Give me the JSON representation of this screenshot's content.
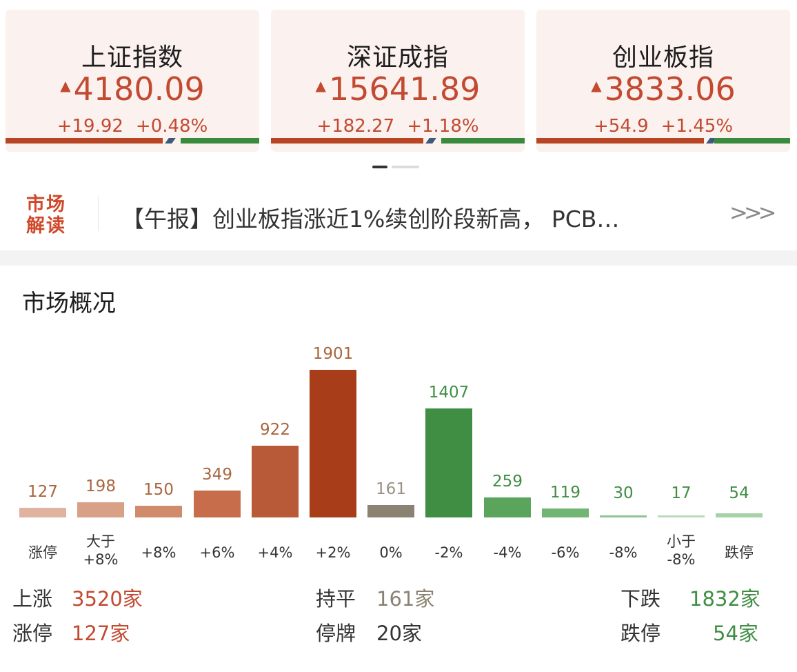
{
  "colors": {
    "up": "#c24a31",
    "down": "#3f8e43",
    "flat": "#8b8272",
    "card_bg": "#fbf1ee",
    "tag": "#d0482a"
  },
  "indices": [
    {
      "name": "上证指数",
      "price": "4180.09",
      "change": "+19.92",
      "pct": "+0.48%",
      "up_share": 0.62,
      "down_share": 0.31
    },
    {
      "name": "深证成指",
      "price": "15641.89",
      "change": "+182.27",
      "pct": "+1.18%",
      "up_share": 0.6,
      "down_share": 0.33
    },
    {
      "name": "创业板指",
      "price": "3833.06",
      "change": "+54.9",
      "pct": "+1.45%",
      "up_share": 0.66,
      "down_share": 0.3
    }
  ],
  "carousel": {
    "pages": 2,
    "active": 1
  },
  "news": {
    "tag_line1": "市场",
    "tag_line2": "解读",
    "headline": "【午报】创业板指涨近1%续创阶段新高， PCB…",
    "more_icon": "triple-chevron-right-icon",
    "more_text": ">>>"
  },
  "overview": {
    "title": "市场概况"
  },
  "chart_data": {
    "type": "bar",
    "categories": [
      "涨停",
      "大于+8%",
      "+8%",
      "+6%",
      "+4%",
      "+2%",
      "0%",
      "-2%",
      "-4%",
      "-6%",
      "-8%",
      "小于-8%",
      "跌停"
    ],
    "category_lines": [
      [
        "涨停"
      ],
      [
        "大于",
        "+8%"
      ],
      [
        "+8%"
      ],
      [
        "+6%"
      ],
      [
        "+4%"
      ],
      [
        "+2%"
      ],
      [
        "0%"
      ],
      [
        "-2%"
      ],
      [
        "-4%"
      ],
      [
        "-6%"
      ],
      [
        "-8%"
      ],
      [
        "小于",
        "-8%"
      ],
      [
        "跌停"
      ]
    ],
    "values": [
      127,
      198,
      150,
      349,
      922,
      1901,
      161,
      1407,
      259,
      119,
      30,
      17,
      54
    ],
    "bar_colors": [
      "#e0b3a0",
      "#d9a088",
      "#d08a6c",
      "#c76d4c",
      "#b85a37",
      "#a73d19",
      "#8b8272",
      "#3f8e43",
      "#5aa45c",
      "#72b473",
      "#8fc591",
      "#b8dbb9",
      "#a6d2a8"
    ],
    "label_colors": [
      "#a9663f",
      "#a9663f",
      "#a9663f",
      "#a9663f",
      "#a9663f",
      "#a9663f",
      "#9a9282",
      "#3f8e43",
      "#3f8e43",
      "#3f8e43",
      "#3f8e43",
      "#3f8e43",
      "#3f8e43"
    ],
    "ylim": [
      0,
      1901
    ],
    "grid": false,
    "title": "",
    "xlabel": "",
    "ylabel": ""
  },
  "stats": {
    "up_label": "上涨",
    "up_value": "3520家",
    "limit_up_label": "涨停",
    "limit_up_value": "127家",
    "flat_label": "持平",
    "flat_value": "161家",
    "suspended_label": "停牌",
    "suspended_value": "20家",
    "down_label": "下跌",
    "down_value": "1832家",
    "limit_down_label": "跌停",
    "limit_down_value": "54家"
  }
}
